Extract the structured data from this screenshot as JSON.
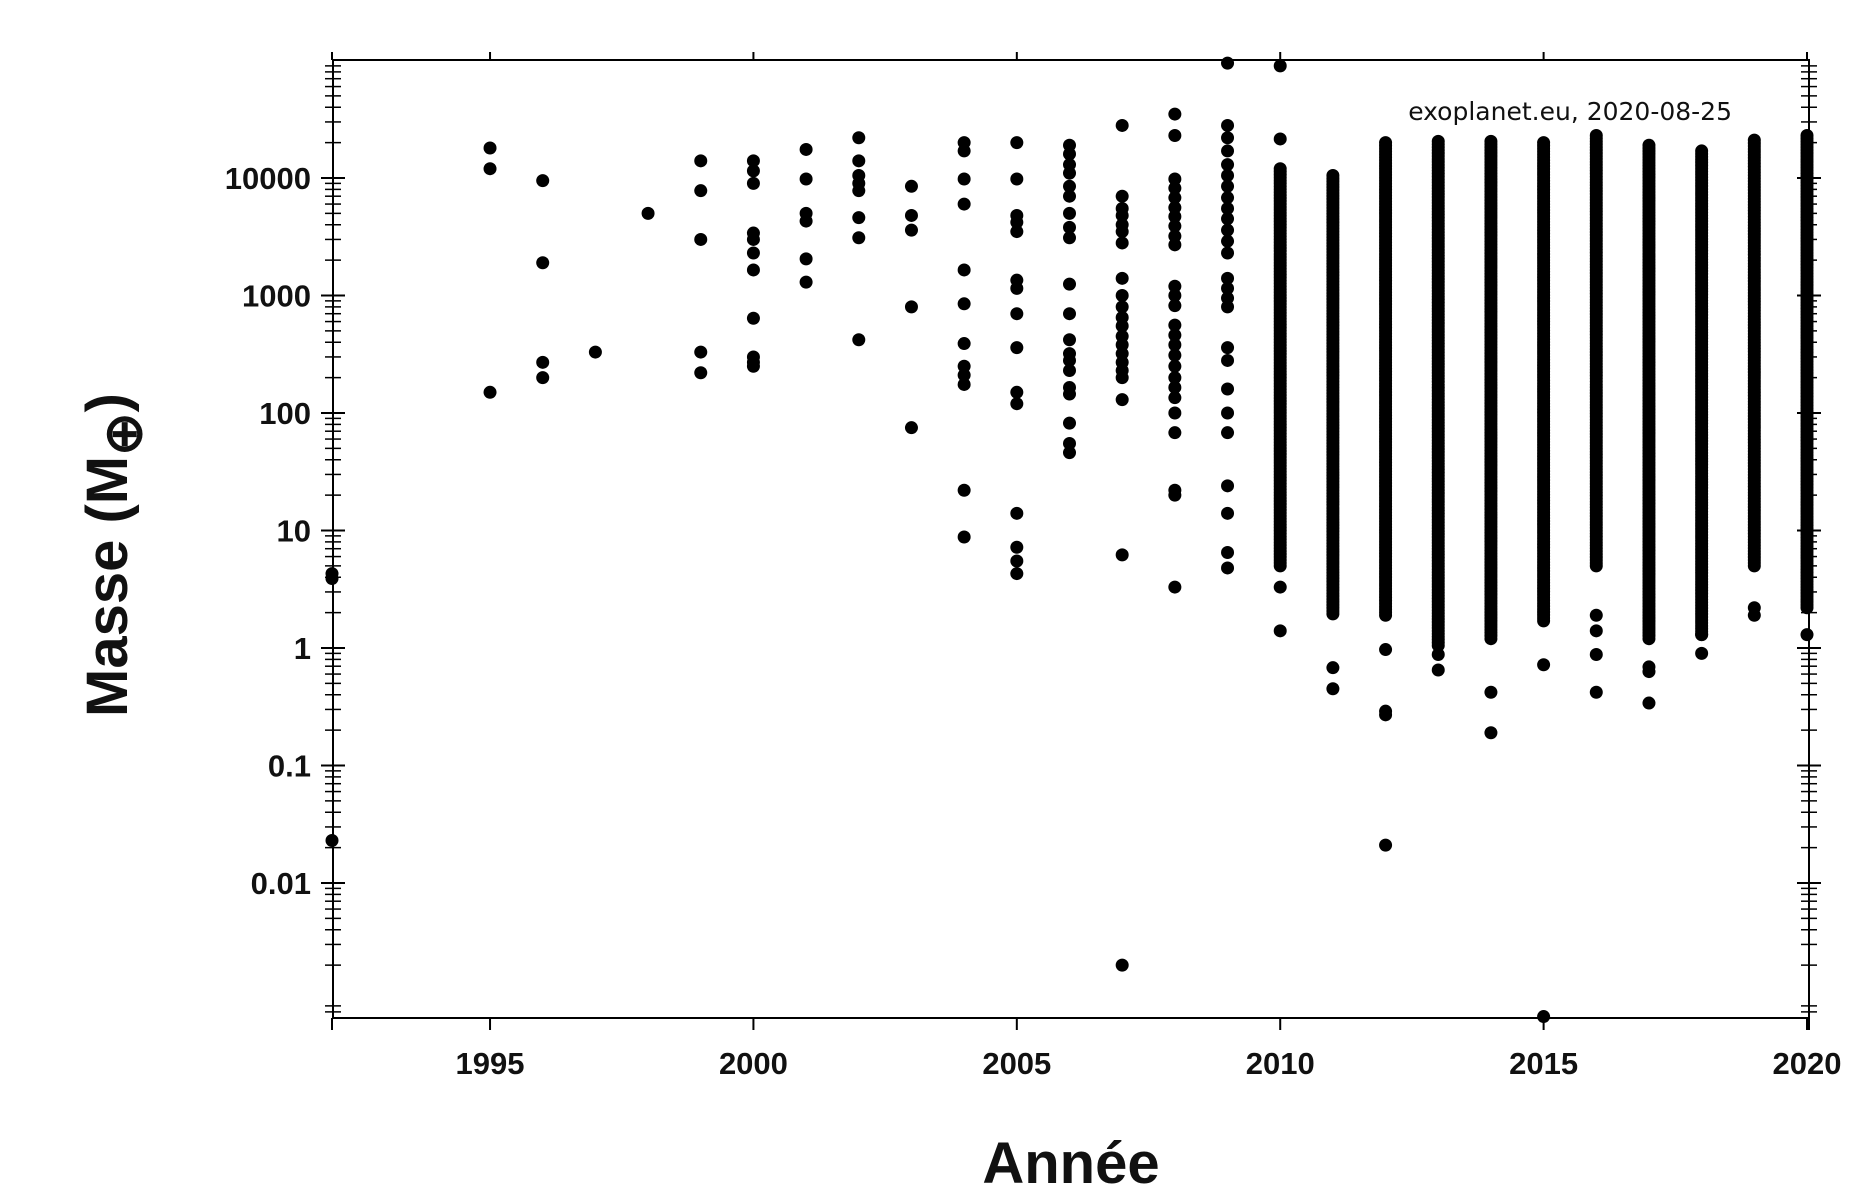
{
  "chart_data": {
    "type": "scatter",
    "xlabel": "Année",
    "ylabel": "Masse (M",
    "ylabel_symbol": "⊕",
    "annotation": "exoplanet.eu, 2020-08-25",
    "x_scale": "linear",
    "y_scale": "log",
    "xlim": [
      1990,
      2021
    ],
    "ylim": [
      0.00065,
      90000
    ],
    "x_ticks": [
      1995,
      2000,
      2005,
      2010,
      2015,
      2020
    ],
    "x_tick_labels": [
      "1995",
      "2000",
      "2005",
      "2010",
      "2015",
      "2020"
    ],
    "y_ticks": [
      0.01,
      0.1,
      1,
      10,
      100,
      1000,
      10000
    ],
    "y_tick_labels": [
      "0.01",
      "0.1",
      "1",
      "10",
      "100",
      "1000",
      "10000"
    ],
    "marker_color": "#000000",
    "grid": false,
    "series": [
      {
        "points": [
          [
            1992,
            4.3
          ],
          [
            1992,
            3.9
          ],
          [
            1992,
            0.023
          ],
          [
            1995,
            18000
          ],
          [
            1995,
            12000
          ],
          [
            1995,
            150
          ],
          [
            1996,
            9500
          ],
          [
            1996,
            1900
          ],
          [
            1996,
            270
          ],
          [
            1996,
            200
          ],
          [
            1997,
            330
          ],
          [
            1998,
            5000
          ],
          [
            1999,
            14000
          ],
          [
            1999,
            7800
          ],
          [
            1999,
            3000
          ],
          [
            1999,
            330
          ],
          [
            1999,
            220
          ],
          [
            2000,
            14000
          ],
          [
            2000,
            11500
          ],
          [
            2000,
            9000
          ],
          [
            2000,
            3400
          ],
          [
            2000,
            3000
          ],
          [
            2000,
            2300
          ],
          [
            2000,
            1650
          ],
          [
            2000,
            640
          ],
          [
            2000,
            300
          ],
          [
            2000,
            270
          ],
          [
            2000,
            250
          ],
          [
            2001,
            17500
          ],
          [
            2001,
            9800
          ],
          [
            2001,
            5000
          ],
          [
            2001,
            4300
          ],
          [
            2001,
            2050
          ],
          [
            2001,
            1300
          ],
          [
            2002,
            22000
          ],
          [
            2002,
            14000
          ],
          [
            2002,
            10500
          ],
          [
            2002,
            9000
          ],
          [
            2002,
            7800
          ],
          [
            2002,
            4600
          ],
          [
            2002,
            3100
          ],
          [
            2002,
            420
          ],
          [
            2003,
            8500
          ],
          [
            2003,
            4800
          ],
          [
            2003,
            3600
          ],
          [
            2003,
            800
          ],
          [
            2003,
            75
          ],
          [
            2004,
            20000
          ],
          [
            2004,
            17000
          ],
          [
            2004,
            9800
          ],
          [
            2004,
            6000
          ],
          [
            2004,
            1650
          ],
          [
            2004,
            850
          ],
          [
            2004,
            390
          ],
          [
            2004,
            250
          ],
          [
            2004,
            210
          ],
          [
            2004,
            175
          ],
          [
            2004,
            22
          ],
          [
            2004,
            8.8
          ],
          [
            2005,
            20000
          ],
          [
            2005,
            9800
          ],
          [
            2005,
            4800
          ],
          [
            2005,
            4200
          ],
          [
            2005,
            3500
          ],
          [
            2005,
            1350
          ],
          [
            2005,
            1150
          ],
          [
            2005,
            700
          ],
          [
            2005,
            360
          ],
          [
            2005,
            150
          ],
          [
            2005,
            120
          ],
          [
            2005,
            14
          ],
          [
            2005,
            7.2
          ],
          [
            2005,
            5.5
          ],
          [
            2005,
            4.3
          ],
          [
            2006,
            19000
          ],
          [
            2006,
            16000
          ],
          [
            2006,
            13000
          ],
          [
            2006,
            11000
          ],
          [
            2006,
            8500
          ],
          [
            2006,
            7000
          ],
          [
            2006,
            5000
          ],
          [
            2006,
            3800
          ],
          [
            2006,
            3100
          ],
          [
            2006,
            1250
          ],
          [
            2006,
            700
          ],
          [
            2006,
            420
          ],
          [
            2006,
            320
          ],
          [
            2006,
            280
          ],
          [
            2006,
            230
          ],
          [
            2006,
            165
          ],
          [
            2006,
            145
          ],
          [
            2006,
            82
          ],
          [
            2006,
            55
          ],
          [
            2006,
            46
          ],
          [
            2007,
            28000
          ],
          [
            2007,
            7000
          ],
          [
            2007,
            5500
          ],
          [
            2007,
            4800
          ],
          [
            2007,
            4000
          ],
          [
            2007,
            3500
          ],
          [
            2007,
            2800
          ],
          [
            2007,
            1400
          ],
          [
            2007,
            1000
          ],
          [
            2007,
            800
          ],
          [
            2007,
            650
          ],
          [
            2007,
            550
          ],
          [
            2007,
            450
          ],
          [
            2007,
            380
          ],
          [
            2007,
            320
          ],
          [
            2007,
            270
          ],
          [
            2007,
            230
          ],
          [
            2007,
            200
          ],
          [
            2007,
            130
          ],
          [
            2007,
            6.2
          ],
          [
            2007,
            0.002
          ],
          [
            2008,
            35000
          ],
          [
            2008,
            23000
          ],
          [
            2008,
            9800
          ],
          [
            2008,
            8200
          ],
          [
            2008,
            6800
          ],
          [
            2008,
            5600
          ],
          [
            2008,
            4700
          ],
          [
            2008,
            3900
          ],
          [
            2008,
            3200
          ],
          [
            2008,
            2700
          ],
          [
            2008,
            1200
          ],
          [
            2008,
            1000
          ],
          [
            2008,
            820
          ],
          [
            2008,
            560
          ],
          [
            2008,
            460
          ],
          [
            2008,
            380
          ],
          [
            2008,
            310
          ],
          [
            2008,
            250
          ],
          [
            2008,
            200
          ],
          [
            2008,
            165
          ],
          [
            2008,
            135
          ],
          [
            2008,
            100
          ],
          [
            2008,
            68
          ],
          [
            2008,
            22
          ],
          [
            2008,
            20
          ],
          [
            2008,
            3.3
          ],
          [
            2009,
            95000
          ],
          [
            2009,
            28000
          ],
          [
            2009,
            22000
          ],
          [
            2009,
            17000
          ],
          [
            2009,
            13000
          ],
          [
            2009,
            10500
          ],
          [
            2009,
            8500
          ],
          [
            2009,
            6800
          ],
          [
            2009,
            5500
          ],
          [
            2009,
            4500
          ],
          [
            2009,
            3600
          ],
          [
            2009,
            2900
          ],
          [
            2009,
            2300
          ],
          [
            2009,
            1400
          ],
          [
            2009,
            1150
          ],
          [
            2009,
            950
          ],
          [
            2009,
            800
          ],
          [
            2009,
            360
          ],
          [
            2009,
            280
          ],
          [
            2009,
            160
          ],
          [
            2009,
            100
          ],
          [
            2009,
            68
          ],
          [
            2009,
            24
          ],
          [
            2009,
            14
          ],
          [
            2009,
            6.5
          ],
          [
            2009,
            4.8
          ],
          [
            2010,
            90000
          ],
          [
            2010,
            21500
          ],
          [
            2010,
            1.4
          ],
          [
            2010,
            3.3
          ],
          [
            2011,
            0.68
          ],
          [
            2011,
            0.45
          ],
          [
            2012,
            0.97
          ],
          [
            2012,
            0.29
          ],
          [
            2012,
            0.27
          ],
          [
            2012,
            0.021
          ],
          [
            2013,
            0.88
          ],
          [
            2013,
            0.65
          ],
          [
            2014,
            0.42
          ],
          [
            2014,
            0.19
          ],
          [
            2015,
            0.72
          ],
          [
            2015,
            0.00073
          ],
          [
            2016,
            1.9
          ],
          [
            2016,
            1.4
          ],
          [
            2016,
            0.88
          ],
          [
            2016,
            0.42
          ],
          [
            2017,
            0.69
          ],
          [
            2017,
            0.63
          ],
          [
            2017,
            0.34
          ],
          [
            2018,
            1.3
          ],
          [
            2018,
            0.9
          ],
          [
            2019,
            2.2
          ],
          [
            2019,
            1.9
          ],
          [
            2020,
            1.3
          ]
        ],
        "dense_ranges": [
          [
            2010,
            5,
            12000
          ],
          [
            2011,
            1.95,
            10500
          ],
          [
            2012,
            1.9,
            20000
          ],
          [
            2013,
            1.05,
            20500
          ],
          [
            2014,
            1.2,
            20500
          ],
          [
            2015,
            1.7,
            20000
          ],
          [
            2016,
            5,
            23000
          ],
          [
            2017,
            1.2,
            19000
          ],
          [
            2018,
            1.3,
            17000
          ],
          [
            2019,
            5,
            21000
          ],
          [
            2020,
            2.2,
            23000
          ]
        ]
      }
    ]
  }
}
